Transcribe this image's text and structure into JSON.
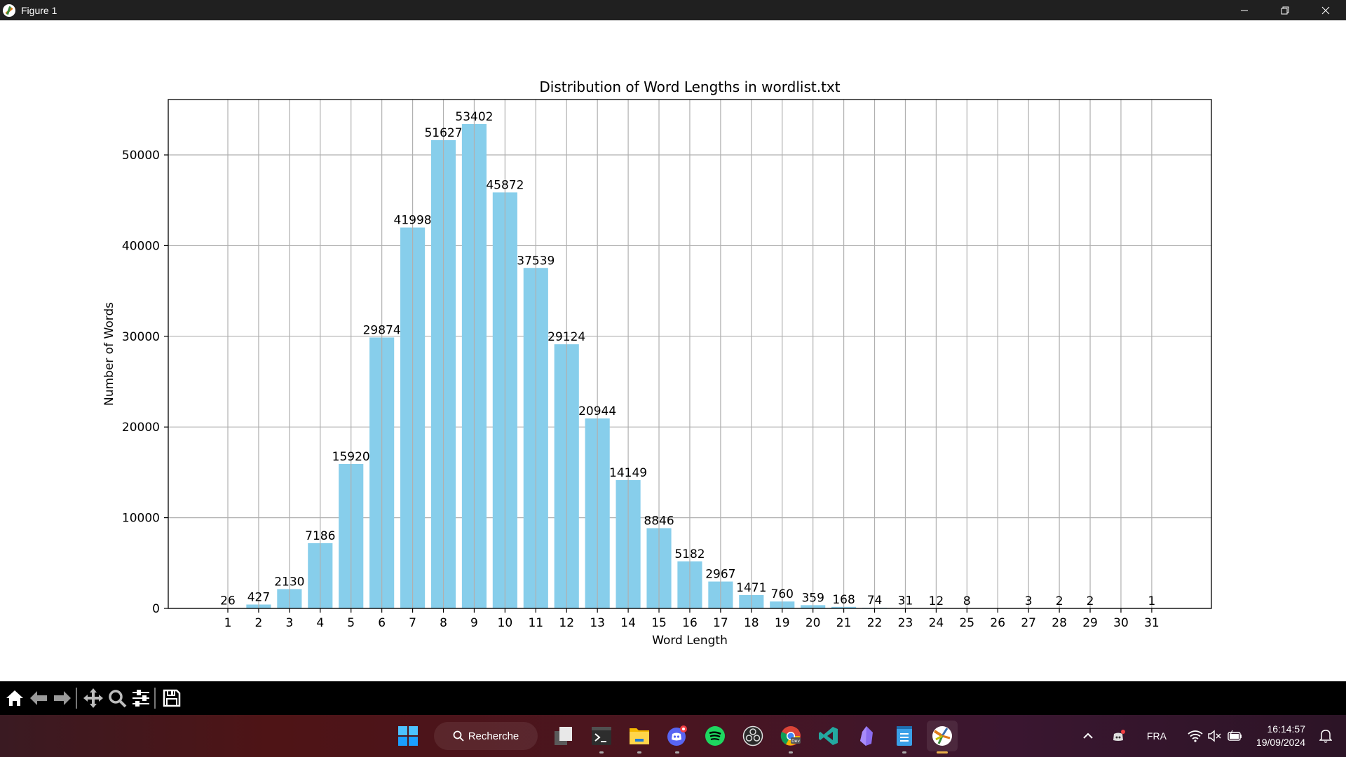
{
  "window": {
    "title": "Figure 1",
    "controls": {
      "minimize": "—",
      "restore": "❐",
      "close": "✕"
    }
  },
  "toolbar": {
    "buttons": [
      {
        "name": "home",
        "icon": "home-icon"
      },
      {
        "name": "back",
        "icon": "arrow-left-icon"
      },
      {
        "name": "forward",
        "icon": "arrow-right-icon"
      },
      {
        "name": "pan",
        "icon": "move-icon"
      },
      {
        "name": "zoom",
        "icon": "magnifier-icon"
      },
      {
        "name": "configure-subplots",
        "icon": "sliders-icon"
      },
      {
        "name": "save",
        "icon": "floppy-disk-icon"
      }
    ]
  },
  "chart_data": {
    "type": "bar",
    "title": "Distribution of Word Lengths in wordlist.txt",
    "xlabel": "Word Length",
    "ylabel": "Number of Words",
    "categories": [
      "1",
      "2",
      "3",
      "4",
      "5",
      "6",
      "7",
      "8",
      "9",
      "10",
      "11",
      "12",
      "13",
      "14",
      "15",
      "16",
      "17",
      "18",
      "19",
      "20",
      "21",
      "22",
      "23",
      "24",
      "25",
      "26",
      "27",
      "28",
      "29",
      "30",
      "31"
    ],
    "values": [
      26,
      427,
      2130,
      7186,
      15920,
      29874,
      41998,
      51627,
      53402,
      45872,
      37539,
      29124,
      20944,
      14149,
      8846,
      5182,
      2967,
      1471,
      760,
      359,
      168,
      74,
      31,
      12,
      8,
      0,
      3,
      2,
      2,
      0,
      1
    ],
    "data_labels": [
      "26",
      "427",
      "2130",
      "7186",
      "15920",
      "29874",
      "41998",
      "51627",
      "53402",
      "45872",
      "37539",
      "29124",
      "20944",
      "14149",
      "8846",
      "5182",
      "2967",
      "1471",
      "760",
      "359",
      "168",
      "74",
      "31",
      "12",
      "8",
      "",
      "3",
      "2",
      "2",
      "",
      "1"
    ],
    "yticks": [
      0,
      10000,
      20000,
      30000,
      40000,
      50000
    ],
    "ylim": [
      0,
      56072
    ],
    "xlim": [
      -0.5,
      31.7
    ],
    "grid": true,
    "bar_color": "#87ceeb",
    "grid_color": "#b0b0b0"
  },
  "taskbar": {
    "search_label": "Recherche",
    "apps": [
      {
        "name": "start",
        "icon": "windows-start-icon"
      },
      {
        "name": "task-view",
        "icon": "task-view-icon"
      },
      {
        "name": "terminal",
        "icon": "terminal-icon",
        "running": true
      },
      {
        "name": "file-explorer",
        "icon": "folder-icon",
        "running": true
      },
      {
        "name": "discord",
        "icon": "discord-icon",
        "running": true,
        "badge": true
      },
      {
        "name": "spotify",
        "icon": "spotify-icon"
      },
      {
        "name": "obs",
        "icon": "obs-icon"
      },
      {
        "name": "chrome-dev",
        "icon": "chrome-dev-icon",
        "running": true
      },
      {
        "name": "vscode",
        "icon": "vscode-icon"
      },
      {
        "name": "obsidian",
        "icon": "obsidian-icon"
      },
      {
        "name": "notepad",
        "icon": "notepad-icon",
        "running": true
      },
      {
        "name": "matplotlib-figure",
        "icon": "matplotlib-icon",
        "running": true,
        "active": true
      }
    ],
    "tray": {
      "language": "FRA",
      "time": "16:14:57",
      "date": "19/09/2024"
    }
  }
}
